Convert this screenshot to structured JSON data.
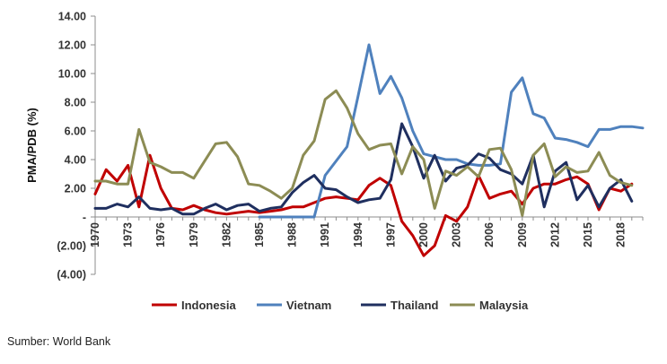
{
  "chart_data": {
    "type": "line",
    "title": "",
    "ylabel": "PMA/PDB (%)",
    "xlabel": "",
    "ylim": [
      -4,
      14
    ],
    "y_ticks": [
      14,
      12,
      10,
      8,
      6,
      4,
      2,
      0,
      -2,
      -4
    ],
    "y_tick_labels": [
      "14.00",
      "12.00",
      "10.00",
      "8.00",
      "6.00",
      "4.00",
      "2.00",
      "-",
      "(2.00)",
      "(4.00)"
    ],
    "x_tick_labels": [
      "1970",
      "1973",
      "1976",
      "1979",
      "1982",
      "1985",
      "1988",
      "1991",
      "1994",
      "1997",
      "2000",
      "2003",
      "2006",
      "2009",
      "2012",
      "2015",
      "2018"
    ],
    "x_start": 1970,
    "x_end": 2020,
    "legend_position": "bottom",
    "series": [
      {
        "name": "Indonesia",
        "color": "#C00000",
        "start_year": 1970,
        "values": [
          1.6,
          3.3,
          2.5,
          3.6,
          0.7,
          4.3,
          2.0,
          0.6,
          0.5,
          0.8,
          0.5,
          0.3,
          0.2,
          0.3,
          0.4,
          0.3,
          0.4,
          0.5,
          0.7,
          0.7,
          1.0,
          1.3,
          1.4,
          1.3,
          1.2,
          2.2,
          2.7,
          2.2,
          -0.3,
          -1.3,
          -2.7,
          -2.0,
          0.1,
          -0.3,
          0.7,
          2.9,
          1.3,
          1.6,
          1.8,
          0.9,
          2.0,
          2.3,
          2.3,
          2.6,
          2.8,
          2.3,
          0.5,
          2.0,
          1.8,
          2.3
        ]
      },
      {
        "name": "Vietnam",
        "color": "#4F81BD",
        "start_year": 1985,
        "values": [
          0.0,
          0.0,
          0.0,
          0.0,
          0.0,
          0.0,
          2.9,
          3.9,
          4.9,
          8.4,
          12.0,
          8.6,
          9.8,
          8.3,
          6.0,
          4.4,
          4.2,
          4.0,
          4.0,
          3.7,
          3.6,
          3.6,
          3.7,
          8.7,
          9.7,
          7.2,
          6.9,
          5.5,
          5.4,
          5.2,
          4.9,
          6.1,
          6.1,
          6.3,
          6.3,
          6.2
        ]
      },
      {
        "name": "Thailand",
        "color": "#1F2F5F",
        "start_year": 1970,
        "values": [
          0.6,
          0.6,
          0.9,
          0.7,
          1.4,
          0.6,
          0.5,
          0.6,
          0.2,
          0.2,
          0.6,
          0.9,
          0.5,
          0.8,
          0.9,
          0.4,
          0.6,
          0.7,
          1.7,
          2.4,
          2.9,
          2.0,
          1.9,
          1.4,
          1.0,
          1.2,
          1.3,
          2.6,
          6.5,
          4.9,
          2.7,
          4.3,
          2.5,
          3.4,
          3.6,
          4.4,
          4.1,
          3.3,
          3.0,
          2.3,
          4.3,
          0.7,
          3.2,
          3.8,
          1.2,
          2.2,
          0.7,
          2.0,
          2.6,
          1.1
        ]
      },
      {
        "name": "Malaysia",
        "color": "#8C8C54",
        "start_year": 1970,
        "values": [
          2.5,
          2.5,
          2.3,
          2.3,
          6.1,
          3.8,
          3.5,
          3.1,
          3.1,
          2.7,
          3.9,
          5.1,
          5.2,
          4.2,
          2.3,
          2.2,
          1.8,
          1.3,
          2.0,
          4.3,
          5.3,
          8.2,
          8.8,
          7.6,
          5.8,
          4.7,
          5.0,
          5.1,
          3.0,
          4.9,
          4.0,
          0.6,
          3.2,
          2.9,
          3.5,
          2.8,
          4.7,
          4.8,
          3.3,
          0.1,
          4.3,
          5.1,
          2.8,
          3.5,
          3.1,
          3.2,
          4.5,
          2.9,
          2.4,
          2.2
        ]
      }
    ]
  },
  "source_note": "Sumber: World Bank"
}
